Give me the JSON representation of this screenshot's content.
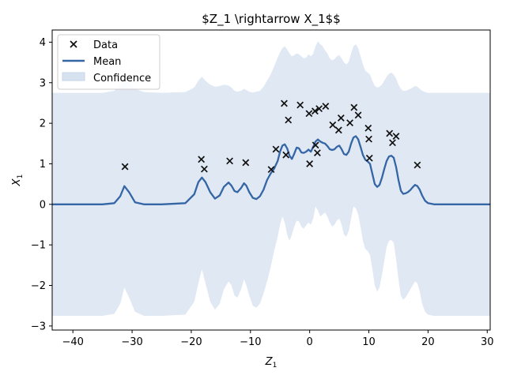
{
  "chart_data": {
    "type": "line",
    "title": "$Z_1 \\rightarrow X_1$$",
    "xlabel": "Z",
    "xlabel_sub": "1",
    "ylabel": "X",
    "ylabel_sub": "1",
    "xlim": [
      -43.5,
      30.5
    ],
    "ylim": [
      -3.1,
      4.3
    ],
    "xticks": [
      -40,
      -30,
      -20,
      -10,
      0,
      10,
      20,
      30
    ],
    "yticks": [
      -3,
      -2,
      -1,
      0,
      1,
      2,
      3,
      4
    ],
    "grid": false,
    "legend_position": "top-left",
    "colors": {
      "mean": "#3465a4",
      "confidence": "#c6d6ea",
      "data": "#111111"
    },
    "legend": [
      {
        "label": "Data",
        "kind": "marker"
      },
      {
        "label": "Mean",
        "kind": "line"
      },
      {
        "label": "Confidence",
        "kind": "patch"
      }
    ],
    "data_points": [
      {
        "x": -31.2,
        "y": 0.93
      },
      {
        "x": -18.3,
        "y": 1.11
      },
      {
        "x": -17.8,
        "y": 0.87
      },
      {
        "x": -13.5,
        "y": 1.07
      },
      {
        "x": -10.8,
        "y": 1.03
      },
      {
        "x": -6.5,
        "y": 0.86
      },
      {
        "x": -5.7,
        "y": 1.36
      },
      {
        "x": -4.3,
        "y": 2.49
      },
      {
        "x": -4.0,
        "y": 1.22
      },
      {
        "x": -3.6,
        "y": 2.08
      },
      {
        "x": -1.6,
        "y": 2.45
      },
      {
        "x": -0.1,
        "y": 2.24
      },
      {
        "x": 0.0,
        "y": 1.0
      },
      {
        "x": 0.9,
        "y": 2.3
      },
      {
        "x": 1.0,
        "y": 1.46
      },
      {
        "x": 1.3,
        "y": 1.27
      },
      {
        "x": 1.6,
        "y": 2.36
      },
      {
        "x": 2.7,
        "y": 2.42
      },
      {
        "x": 3.9,
        "y": 1.96
      },
      {
        "x": 4.9,
        "y": 1.83
      },
      {
        "x": 5.3,
        "y": 2.13
      },
      {
        "x": 6.8,
        "y": 2.01
      },
      {
        "x": 7.5,
        "y": 2.39
      },
      {
        "x": 8.2,
        "y": 2.2
      },
      {
        "x": 9.9,
        "y": 1.88
      },
      {
        "x": 10.0,
        "y": 1.61
      },
      {
        "x": 10.1,
        "y": 1.14
      },
      {
        "x": 13.5,
        "y": 1.75
      },
      {
        "x": 14.0,
        "y": 1.52
      },
      {
        "x": 14.6,
        "y": 1.68
      },
      {
        "x": 18.2,
        "y": 0.97
      }
    ],
    "mean": {
      "x": [
        -43.5,
        -35,
        -33,
        -32,
        -31.3,
        -30.5,
        -29.5,
        -28,
        -25,
        -21,
        -19.5,
        -18.8,
        -18.2,
        -17.6,
        -16.8,
        -16,
        -15.2,
        -14.5,
        -13.7,
        -13.2,
        -12.7,
        -12.2,
        -11.6,
        -11.1,
        -10.7,
        -10.2,
        -9.6,
        -9,
        -8.4,
        -7.8,
        -7.2,
        -6.6,
        -6,
        -5.4,
        -5,
        -4.6,
        -4.2,
        -3.8,
        -3.4,
        -3,
        -2.6,
        -2.2,
        -1.8,
        -1.4,
        -1,
        -0.6,
        -0.2,
        0.2,
        0.6,
        1,
        1.4,
        1.8,
        2.2,
        2.6,
        3,
        3.4,
        3.8,
        4.2,
        4.6,
        5,
        5.4,
        5.8,
        6.2,
        6.6,
        7,
        7.4,
        7.8,
        8.2,
        8.6,
        9,
        9.4,
        9.8,
        10.2,
        10.6,
        11,
        11.4,
        11.8,
        12.2,
        12.6,
        13,
        13.4,
        13.8,
        14.2,
        14.6,
        15,
        15.4,
        15.8,
        16.2,
        16.6,
        17,
        17.4,
        17.8,
        18.2,
        18.6,
        19,
        19.5,
        20,
        21,
        22,
        24,
        30.5
      ],
      "y": [
        0,
        0,
        0.03,
        0.2,
        0.45,
        0.3,
        0.05,
        0,
        0,
        0.03,
        0.25,
        0.55,
        0.66,
        0.55,
        0.3,
        0.14,
        0.22,
        0.43,
        0.54,
        0.46,
        0.33,
        0.3,
        0.4,
        0.52,
        0.46,
        0.3,
        0.16,
        0.13,
        0.2,
        0.36,
        0.6,
        0.76,
        0.88,
        1.07,
        1.3,
        1.45,
        1.48,
        1.38,
        1.2,
        1.12,
        1.25,
        1.4,
        1.38,
        1.28,
        1.27,
        1.3,
        1.35,
        1.3,
        1.42,
        1.55,
        1.6,
        1.55,
        1.52,
        1.5,
        1.44,
        1.36,
        1.34,
        1.36,
        1.42,
        1.45,
        1.36,
        1.24,
        1.22,
        1.3,
        1.5,
        1.65,
        1.68,
        1.6,
        1.42,
        1.22,
        1.1,
        1.06,
        1.0,
        0.75,
        0.5,
        0.43,
        0.48,
        0.65,
        0.87,
        1.07,
        1.18,
        1.2,
        1.15,
        0.92,
        0.6,
        0.34,
        0.26,
        0.27,
        0.3,
        0.35,
        0.42,
        0.48,
        0.45,
        0.36,
        0.22,
        0.09,
        0.03,
        0,
        0,
        0,
        0
      ]
    },
    "confidence": {
      "x": [
        -43.5,
        -35,
        -33,
        -32,
        -31.3,
        -30.5,
        -29.5,
        -28,
        -25,
        -21,
        -19.5,
        -18.8,
        -18.2,
        -17.6,
        -16.8,
        -16,
        -15.2,
        -14.5,
        -13.7,
        -13.2,
        -12.7,
        -12.2,
        -11.6,
        -11.1,
        -10.7,
        -10.2,
        -9.6,
        -9,
        -8.4,
        -7.8,
        -7.2,
        -6.6,
        -6,
        -5.4,
        -5,
        -4.6,
        -4.2,
        -3.8,
        -3.4,
        -3,
        -2.6,
        -2.2,
        -1.8,
        -1.4,
        -1,
        -0.6,
        -0.2,
        0.2,
        0.6,
        1,
        1.4,
        1.8,
        2.2,
        2.6,
        3,
        3.4,
        3.8,
        4.2,
        4.6,
        5,
        5.4,
        5.8,
        6.2,
        6.6,
        7,
        7.4,
        7.8,
        8.2,
        8.6,
        9,
        9.4,
        9.8,
        10.2,
        10.6,
        11,
        11.4,
        11.8,
        12.2,
        12.6,
        13,
        13.4,
        13.8,
        14.2,
        14.6,
        15,
        15.4,
        15.8,
        16.2,
        16.6,
        17,
        17.4,
        17.8,
        18.2,
        18.6,
        19,
        19.5,
        20,
        21,
        22,
        24,
        30.5
      ],
      "upper": [
        2.75,
        2.75,
        2.8,
        2.95,
        3.05,
        3.0,
        2.85,
        2.77,
        2.75,
        2.77,
        2.88,
        3.05,
        3.15,
        3.05,
        2.95,
        2.9,
        2.92,
        2.95,
        2.93,
        2.88,
        2.8,
        2.78,
        2.8,
        2.85,
        2.82,
        2.78,
        2.76,
        2.78,
        2.8,
        2.9,
        3.05,
        3.2,
        3.4,
        3.62,
        3.75,
        3.85,
        3.9,
        3.82,
        3.72,
        3.65,
        3.68,
        3.72,
        3.7,
        3.65,
        3.6,
        3.62,
        3.7,
        3.65,
        3.72,
        3.9,
        4.02,
        3.95,
        3.9,
        3.8,
        3.72,
        3.6,
        3.55,
        3.58,
        3.65,
        3.68,
        3.6,
        3.5,
        3.45,
        3.52,
        3.72,
        3.9,
        3.95,
        3.85,
        3.65,
        3.45,
        3.3,
        3.25,
        3.2,
        3.05,
        2.92,
        2.88,
        2.9,
        2.95,
        3.05,
        3.15,
        3.22,
        3.25,
        3.2,
        3.1,
        2.95,
        2.85,
        2.8,
        2.8,
        2.82,
        2.85,
        2.88,
        2.92,
        2.9,
        2.85,
        2.8,
        2.77,
        2.75,
        2.75,
        2.75,
        2.75,
        2.75
      ],
      "lower": [
        -2.75,
        -2.75,
        -2.7,
        -2.45,
        -2.05,
        -2.3,
        -2.65,
        -2.75,
        -2.75,
        -2.72,
        -2.4,
        -1.95,
        -1.6,
        -1.95,
        -2.4,
        -2.6,
        -2.45,
        -2.1,
        -1.9,
        -2.0,
        -2.25,
        -2.3,
        -2.1,
        -1.85,
        -2.0,
        -2.25,
        -2.5,
        -2.55,
        -2.45,
        -2.2,
        -1.9,
        -1.55,
        -1.15,
        -0.8,
        -0.5,
        -0.3,
        -0.45,
        -0.75,
        -0.9,
        -0.75,
        -0.55,
        -0.4,
        -0.42,
        -0.55,
        -0.6,
        -0.52,
        -0.45,
        -0.5,
        -0.35,
        -0.05,
        -0.15,
        -0.3,
        -0.25,
        -0.2,
        -0.3,
        -0.45,
        -0.55,
        -0.5,
        -0.4,
        -0.35,
        -0.5,
        -0.75,
        -0.8,
        -0.65,
        -0.35,
        -0.05,
        -0.1,
        -0.25,
        -0.55,
        -0.9,
        -1.1,
        -1.15,
        -1.25,
        -1.6,
        -2.0,
        -2.15,
        -2.05,
        -1.75,
        -1.4,
        -1.05,
        -0.9,
        -0.88,
        -0.95,
        -1.35,
        -1.85,
        -2.25,
        -2.35,
        -2.3,
        -2.2,
        -2.1,
        -2.0,
        -1.9,
        -1.95,
        -2.15,
        -2.45,
        -2.65,
        -2.72,
        -2.75,
        -2.75,
        -2.75,
        -2.75
      ]
    }
  }
}
